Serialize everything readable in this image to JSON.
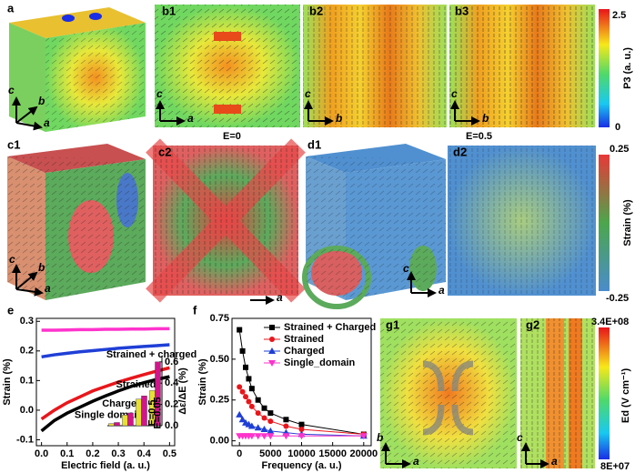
{
  "panels": {
    "a": {
      "label": "a",
      "axes": [
        "c",
        "b",
        "a"
      ]
    },
    "b1": {
      "label": "b1",
      "axes": [
        "c",
        "a"
      ]
    },
    "b2": {
      "label": "b2",
      "axes": [
        "c",
        "b"
      ]
    },
    "b3": {
      "label": "b3",
      "axes": [
        "c",
        "b"
      ]
    },
    "c1": {
      "label": "c1",
      "axes": [
        "c",
        "b",
        "a"
      ]
    },
    "c2": {
      "label": "c2",
      "axes": [
        "a"
      ]
    },
    "d1": {
      "label": "d1",
      "axes": [
        "c",
        "a"
      ]
    },
    "d2": {
      "label": "d2"
    },
    "e": {
      "label": "e"
    },
    "f": {
      "label": "f"
    },
    "g1": {
      "label": "g1",
      "axes": [
        "b",
        "a"
      ]
    },
    "g2": {
      "label": "g2",
      "axes": [
        "c",
        "a"
      ]
    }
  },
  "field_labels": [
    "E=0",
    "E=0.5"
  ],
  "colorbars": [
    {
      "max": "2.5",
      "label": "P3 (a. u.)",
      "min": "0"
    },
    {
      "max": "0.25",
      "label": "Strain (%)",
      "min": "-0.25"
    },
    {
      "max": "3.4E+08",
      "label": "Ed (V cm⁻¹)",
      "min": "8E+07"
    }
  ],
  "chart_data": [
    {
      "type": "line",
      "xlabel": "Electric field (a. u.)",
      "ylabel": "Strain (%)",
      "x": [
        0,
        0.05,
        0.1,
        0.15,
        0.2,
        0.25,
        0.3,
        0.35,
        0.4,
        0.45,
        0.5
      ],
      "xlim": [
        -0.02,
        0.52
      ],
      "xticks": [
        {
          "value": 0,
          "label": "0.0"
        },
        0.1,
        0.2,
        0.3,
        0.4,
        0.5
      ],
      "ylim": [
        -0.12,
        0.31
      ],
      "yticks": [
        -0.1,
        {
          "value": 0,
          "label": "0.0"
        },
        0.1,
        0.2,
        0.3
      ],
      "series": [
        {
          "color": "#ff33cc",
          "values": [
            0.27,
            0.27,
            0.271,
            0.272,
            0.272,
            0.273,
            0.273,
            0.274,
            0.274,
            0.275,
            0.275
          ]
        },
        {
          "color": "#1f3fd6",
          "values": [
            0.18,
            0.187,
            0.192,
            0.197,
            0.201,
            0.205,
            0.209,
            0.212,
            0.215,
            0.218,
            0.221
          ]
        },
        {
          "color": "#e8161b",
          "values": [
            -0.03,
            0.0,
            0.025,
            0.045,
            0.065,
            0.08,
            0.095,
            0.108,
            0.12,
            0.132,
            0.143
          ]
        },
        {
          "color": "#000000",
          "values": [
            -0.07,
            -0.035,
            -0.01,
            0.01,
            0.03,
            0.048,
            0.065,
            0.08,
            0.093,
            0.104,
            0.113
          ]
        }
      ]
    },
    {
      "type": "bar",
      "ylabel": "Δε/ΔE (%)",
      "categories": [
        "Single domain",
        "Charged",
        "Strained",
        "Strained + charged"
      ],
      "category_colors": [
        "#ff33cc",
        "#1f3fd6",
        "#e8161b",
        "#000000"
      ],
      "ylim": [
        0,
        0.65
      ],
      "yticks": [
        {
          "value": 0,
          "label": "0.0"
        },
        0.2,
        0.4,
        0.6
      ],
      "series": [
        {
          "name": "E=0.5",
          "color": "#e6e033",
          "values": [
            0.02,
            0.1,
            0.25,
            0.33
          ]
        },
        {
          "name": "E=0.05",
          "color": "#d4148c",
          "values": [
            0.03,
            0.12,
            0.28,
            0.6
          ]
        }
      ]
    },
    {
      "type": "line",
      "xlabel": "Frequency (a. u.)",
      "ylabel": "Strain (%)",
      "legend": "upper right",
      "x": [
        0,
        500,
        1000,
        1500,
        2000,
        3000,
        4000,
        5000,
        7500,
        10000,
        20000
      ],
      "xlim": [
        -1200,
        21200
      ],
      "xticks": [
        0,
        5000,
        10000,
        15000,
        20000
      ],
      "ylim": [
        -0.03,
        0.75
      ],
      "yticks": [
        {
          "value": 0,
          "label": "0.00"
        },
        0.25,
        {
          "value": 0.5,
          "label": "0.50"
        },
        0.75
      ],
      "series": [
        {
          "name": "Strained + Charged",
          "color": "#000000",
          "marker": "square",
          "values": [
            0.68,
            0.55,
            0.45,
            0.38,
            0.32,
            0.25,
            0.2,
            0.17,
            0.13,
            0.1,
            0.04
          ]
        },
        {
          "name": "Strained",
          "color": "#e8161b",
          "marker": "circle",
          "values": [
            0.33,
            0.3,
            0.27,
            0.24,
            0.21,
            0.17,
            0.14,
            0.12,
            0.09,
            0.07,
            0.04
          ]
        },
        {
          "name": "Charged",
          "color": "#1f3fd6",
          "marker": "triangle",
          "values": [
            0.16,
            0.13,
            0.11,
            0.1,
            0.09,
            0.08,
            0.07,
            0.06,
            0.05,
            0.04,
            0.03
          ]
        },
        {
          "name": "Single_domain",
          "color": "#ff33cc",
          "marker": "down",
          "values": [
            0.03,
            0.03,
            0.03,
            0.03,
            0.03,
            0.03,
            0.03,
            0.03,
            0.03,
            0.03,
            0.03
          ]
        }
      ]
    }
  ]
}
